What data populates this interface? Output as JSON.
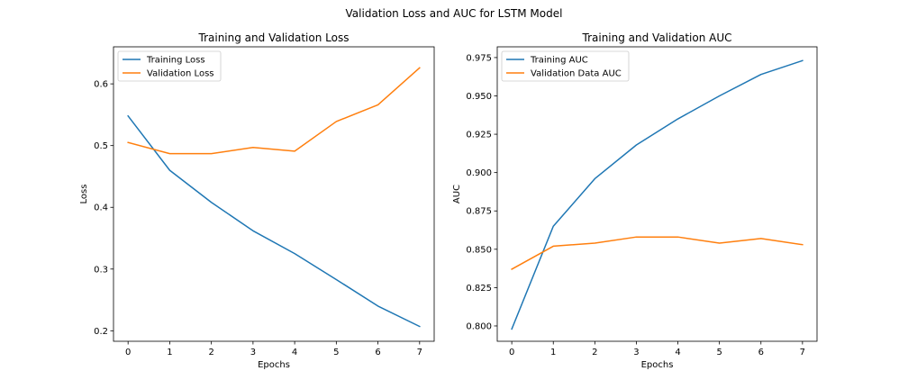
{
  "figure": {
    "suptitle": "Validation Loss and AUC for LSTM Model"
  },
  "chart_data": [
    {
      "type": "line",
      "title": "Training and Validation Loss",
      "xlabel": "Epochs",
      "ylabel": "Loss",
      "x": [
        0,
        1,
        2,
        3,
        4,
        5,
        6,
        7
      ],
      "xticks": [
        0,
        1,
        2,
        3,
        4,
        5,
        6,
        7
      ],
      "yticks": [
        0.2,
        0.3,
        0.4,
        0.5,
        0.6
      ],
      "ytick_labels": [
        "0.2",
        "0.3",
        "0.4",
        "0.5",
        "0.6"
      ],
      "xlim": [
        -0.35,
        7.35
      ],
      "ylim": [
        0.183,
        0.66
      ],
      "grid": false,
      "legend_position": "upper-left",
      "series": [
        {
          "name": "Training Loss",
          "color": "#1f77b4",
          "values": [
            0.548,
            0.46,
            0.408,
            0.362,
            0.325,
            0.283,
            0.24,
            0.207
          ]
        },
        {
          "name": "Validation Loss",
          "color": "#ff7f0e",
          "values": [
            0.505,
            0.487,
            0.487,
            0.497,
            0.491,
            0.539,
            0.566,
            0.626
          ]
        }
      ]
    },
    {
      "type": "line",
      "title": "Training and Validation AUC",
      "xlabel": "Epochs",
      "ylabel": "AUC",
      "x": [
        0,
        1,
        2,
        3,
        4,
        5,
        6,
        7
      ],
      "xticks": [
        0,
        1,
        2,
        3,
        4,
        5,
        6,
        7
      ],
      "yticks": [
        0.8,
        0.825,
        0.85,
        0.875,
        0.9,
        0.925,
        0.95,
        0.975
      ],
      "ytick_labels": [
        "0.800",
        "0.825",
        "0.850",
        "0.875",
        "0.900",
        "0.925",
        "0.950",
        "0.975"
      ],
      "xlim": [
        -0.35,
        7.35
      ],
      "ylim": [
        0.79,
        0.982
      ],
      "grid": false,
      "legend_position": "upper-left",
      "series": [
        {
          "name": "Training AUC",
          "color": "#1f77b4",
          "values": [
            0.798,
            0.865,
            0.896,
            0.918,
            0.935,
            0.95,
            0.964,
            0.973
          ]
        },
        {
          "name": "Validation Data AUC",
          "color": "#ff7f0e",
          "values": [
            0.837,
            0.852,
            0.854,
            0.858,
            0.858,
            0.854,
            0.857,
            0.853
          ]
        }
      ]
    }
  ]
}
